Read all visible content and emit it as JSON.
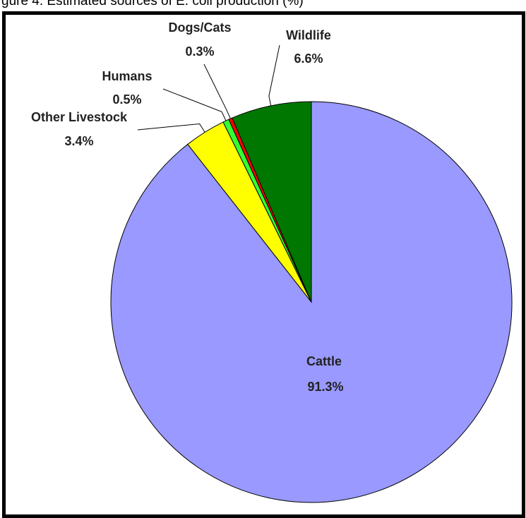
{
  "figure_caption": "gure 4. Estimated sources of E. coli production (%)",
  "chart_data": {
    "type": "pie",
    "slices": [
      {
        "label": "Cattle",
        "value": 91.3,
        "value_label": "91.3%",
        "color": "#9999ff"
      },
      {
        "label": "Other Livestock",
        "value": 3.4,
        "value_label": "3.4%",
        "color": "#ffff00"
      },
      {
        "label": "Humans",
        "value": 0.5,
        "value_label": "0.5%",
        "color": "#33ff33"
      },
      {
        "label": "Dogs/Cats",
        "value": 0.3,
        "value_label": "0.3%",
        "color": "#ff0000"
      },
      {
        "label": "Wildlife",
        "value": 6.6,
        "value_label": "6.6%",
        "color": "#007700"
      }
    ],
    "start_angle_deg": 0,
    "direction": "clockwise"
  }
}
